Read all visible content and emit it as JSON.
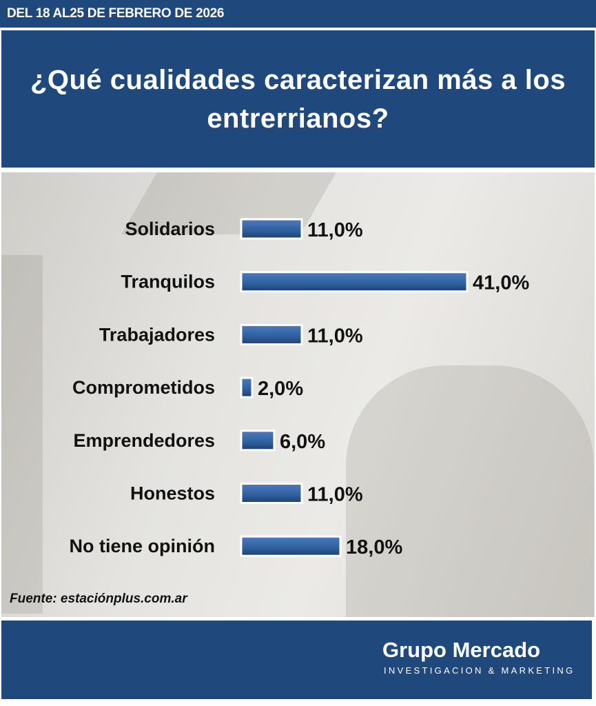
{
  "header": {
    "date_range": "DEL 18 AL25 DE FEBRERO DE 2026"
  },
  "chart_data": {
    "type": "bar",
    "orientation": "horizontal",
    "title": "¿Qué cualidades caracterizan más a los entrerrianos?",
    "categories": [
      "Solidarios",
      "Tranquilos",
      "Trabajadores",
      "Comprometidos",
      "Emprendedores",
      "Honestos",
      "No tiene opinión"
    ],
    "values": [
      11.0,
      41.0,
      11.0,
      2.0,
      6.0,
      11.0,
      18.0
    ],
    "value_labels": [
      "11,0%",
      "41,0%",
      "11,0%",
      "2,0%",
      "6,0%",
      "11,0%",
      "18,0%"
    ],
    "unit": "%",
    "bar_color": "#2f5f9c",
    "grid": false,
    "xlabel": "",
    "ylabel": ""
  },
  "source": "Fuente: estaciónplus.com.ar",
  "footer": {
    "brand": "Grupo Mercado",
    "tagline": "INVESTIGACION & MARKETING"
  }
}
